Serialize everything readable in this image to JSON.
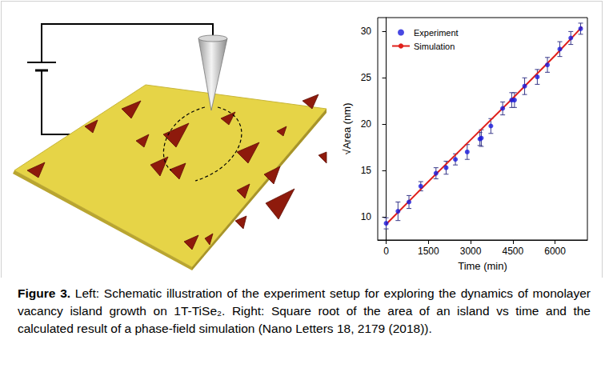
{
  "chart_data": {
    "type": "scatter",
    "x_label": "Time (min)",
    "y_label": "√Area (nm)",
    "xlim": [
      -300,
      7150
    ],
    "xticks": [
      0,
      1500,
      3000,
      4500,
      6000
    ],
    "ylim": [
      7.5,
      31.5
    ],
    "yticks": [
      10,
      15,
      20,
      25,
      30
    ],
    "legend": "upper left",
    "series": [
      {
        "name": "Experiment",
        "type": "scatter",
        "color": "#1a1adb",
        "marker": "circle",
        "x": [
          0,
          420,
          810,
          1230,
          1770,
          2130,
          2460,
          2880,
          3330,
          3380,
          3720,
          4140,
          4460,
          4560,
          4920,
          5370,
          5730,
          6170,
          6560,
          6910
        ],
        "values": [
          9.3,
          10.6,
          11.6,
          13.3,
          14.7,
          15.3,
          16.2,
          17.0,
          18.4,
          18.5,
          19.8,
          21.7,
          22.6,
          22.6,
          24.1,
          25.1,
          26.4,
          28.1,
          29.3,
          30.3
        ],
        "errors": [
          0.6,
          1.0,
          0.7,
          0.5,
          0.6,
          0.7,
          0.6,
          0.8,
          0.7,
          0.9,
          0.8,
          0.7,
          0.8,
          0.8,
          0.9,
          0.8,
          0.8,
          0.8,
          0.7,
          0.6
        ]
      },
      {
        "name": "Simulation",
        "type": "line",
        "color": "#e0201b",
        "line_style": "solid",
        "x": [
          0,
          1500,
          3000,
          4500,
          6000,
          6960
        ],
        "values": [
          9.2,
          13.8,
          18.3,
          22.8,
          27.4,
          30.5
        ]
      }
    ]
  },
  "caption": {
    "label": "Figure 3.",
    "text": "Left: Schematic illustration of the experiment setup for exploring the dynamics of monolayer vacancy island growth on 1T-TiSe₂. Right: Square root of the area of an island vs time and the calculated result of a phase-field simulation (Nano Letters 18, 2179 (2018))."
  }
}
